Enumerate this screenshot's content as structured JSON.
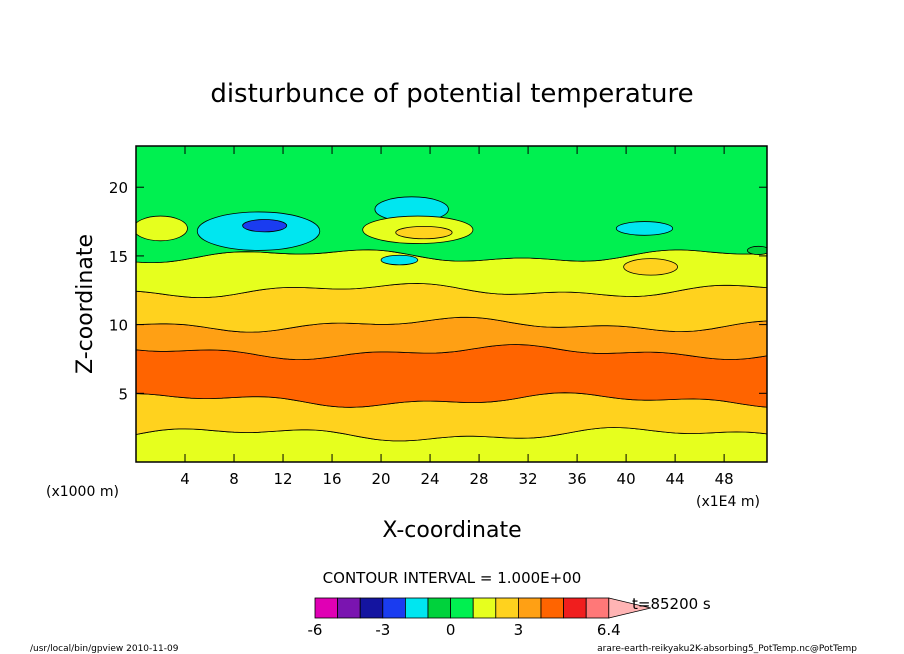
{
  "chart_data": {
    "type": "heatmap",
    "subtype": "filled-contour",
    "title": "disturbunce of potential temperature",
    "xlabel": "X-coordinate",
    "ylabel": "Z-coordinate",
    "x_unit_left": "(x1000 m)",
    "x_unit_right": "(x1E4 m)",
    "xlim": [
      0,
      51.5
    ],
    "ylim": [
      0,
      23
    ],
    "xticks": [
      "4",
      "8",
      "12",
      "16",
      "20",
      "24",
      "28",
      "32",
      "36",
      "40",
      "44",
      "48"
    ],
    "yticks": [
      "5",
      "10",
      "15",
      "20"
    ],
    "contour_interval_label": "CONTOUR INTERVAL = 1.000E+00",
    "time_label": "t=85200 s",
    "colorbar": {
      "levels": [
        -6,
        -5,
        -4,
        -3,
        -2,
        -1,
        0,
        1,
        2,
        3,
        4,
        5,
        6,
        6.4
      ],
      "tick_labels": [
        "-6",
        "-3",
        "0",
        "3",
        "6.4"
      ],
      "colors": [
        "#e000b4",
        "#7a14b0",
        "#1414a0",
        "#1a3cf0",
        "#00e6f0",
        "#00d23c",
        "#00f050",
        "#e6ff1e",
        "#ffd21e",
        "#ffa014",
        "#ff6400",
        "#f01e1e",
        "#ff7878",
        "#ffb4b4"
      ]
    },
    "bands": [
      {
        "range": "0-2",
        "z_bottom": 0,
        "z_top": 2
      },
      {
        "range": "2-4.5",
        "z_bottom": 2,
        "z_top": 4.5
      },
      {
        "range": "4.5-8",
        "z_bottom": 4.5,
        "z_top": 8
      },
      {
        "range": "8-10",
        "z_bottom": 8,
        "z_top": 10
      },
      {
        "range": "10-12.5",
        "z_bottom": 10,
        "z_top": 12.5
      },
      {
        "range": "12.5-15",
        "z_bottom": 12.5,
        "z_top": 15
      },
      {
        "range": "15-23",
        "z_bottom": 15,
        "z_top": 23
      }
    ],
    "blobs": [
      {
        "x": 2,
        "z": 17,
        "rx": 2.2,
        "rz": 0.9,
        "level": 1
      },
      {
        "x": 10,
        "z": 16.8,
        "rx": 5,
        "rz": 1.4,
        "level": -2
      },
      {
        "x": 10.5,
        "z": 17.2,
        "rx": 1.8,
        "rz": 0.45,
        "level": -3
      },
      {
        "x": 22.5,
        "z": 18.4,
        "rx": 3,
        "rz": 0.9,
        "level": -2
      },
      {
        "x": 23,
        "z": 16.9,
        "rx": 4.5,
        "rz": 1.0,
        "level": 1
      },
      {
        "x": 23.5,
        "z": 16.7,
        "rx": 2.3,
        "rz": 0.45,
        "level": 2
      },
      {
        "x": 21.5,
        "z": 14.7,
        "rx": 1.5,
        "rz": 0.35,
        "level": -2
      },
      {
        "x": 41.5,
        "z": 17.0,
        "rx": 2.3,
        "rz": 0.5,
        "level": -2
      },
      {
        "x": 42,
        "z": 14.2,
        "rx": 2.2,
        "rz": 0.6,
        "level": 2
      },
      {
        "x": 50.8,
        "z": 15.4,
        "rx": 0.9,
        "rz": 0.3,
        "level": -1
      }
    ]
  },
  "footer": {
    "left": "/usr/local/bin/gpview  2010-11-09",
    "right": "arare-earth-reikyaku2K-absorbing5_PotTemp.nc@PotTemp"
  }
}
